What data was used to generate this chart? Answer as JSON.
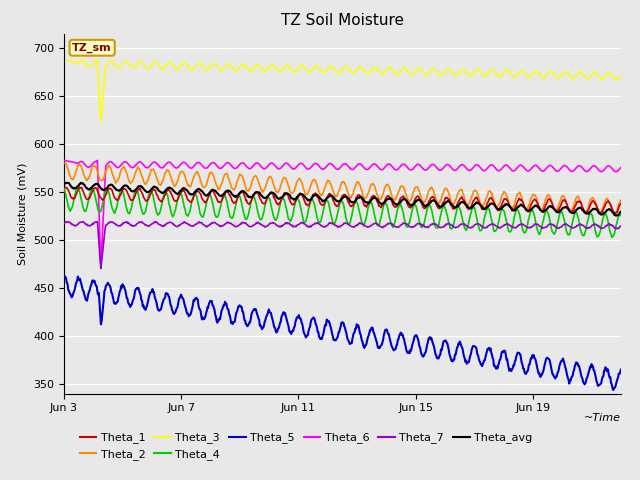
{
  "title": "TZ Soil Moisture",
  "xlabel": "~Time",
  "ylabel": "Soil Moisture (mV)",
  "ylim": [
    340,
    715
  ],
  "xlim_days": [
    0,
    19
  ],
  "x_ticks_labels": [
    "Jun 3",
    "Jun 7",
    "Jun 11",
    "Jun 15",
    "Jun 19"
  ],
  "x_ticks_pos": [
    0,
    4,
    8,
    12,
    16
  ],
  "legend_label": "TZ_sm",
  "legend_bg": "#ffffcc",
  "legend_border": "#cc9900",
  "legend_text_color": "#880000",
  "background_color": "#e8e8e8",
  "plot_bg": "#e8e8e8",
  "grid_color": "#ffffff",
  "colors": {
    "Theta_1": "#cc0000",
    "Theta_2": "#ff8800",
    "Theta_3": "#ffff00",
    "Theta_4": "#00cc00",
    "Theta_5": "#0000cc",
    "Theta_6": "#ff00ff",
    "Theta_7": "#9900cc",
    "Theta_avg": "#000000"
  },
  "n_points": 800,
  "duration_days": 19,
  "seed": 42,
  "figsize": [
    6.4,
    4.8
  ],
  "dpi": 100
}
